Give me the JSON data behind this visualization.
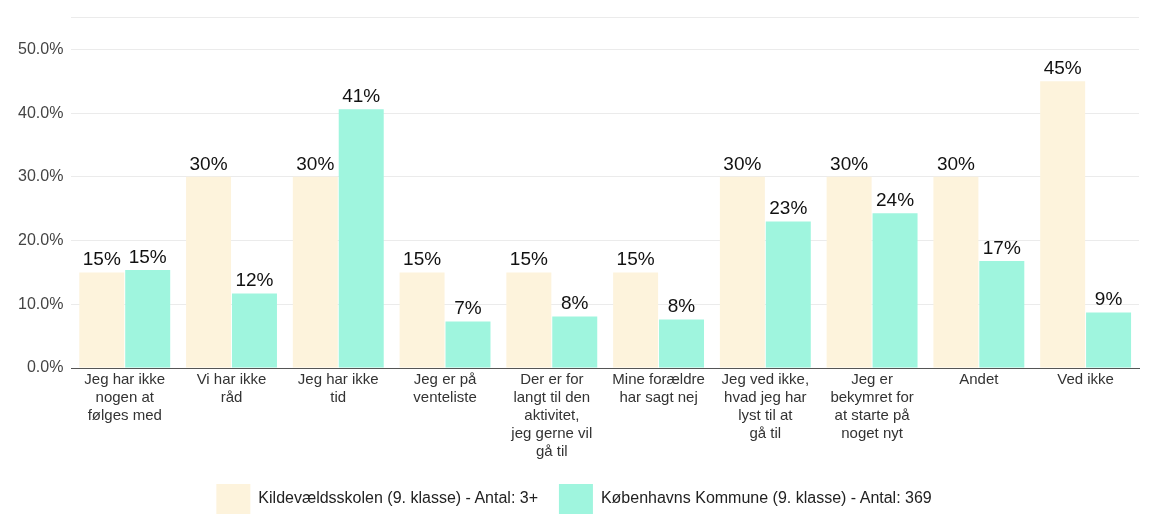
{
  "chart_data": {
    "type": "bar",
    "categories": [
      "Jeg har ikke nogen at følges med",
      "Vi har ikke råd",
      "Jeg har ikke tid",
      "Jeg er på venteliste",
      "Der er for langt til den aktivitet, jeg gerne vil gå til",
      "Mine forældre har sagt nej",
      "Jeg ved ikke, hvad jeg har lyst til at gå til",
      "Jeg er bekymret for at starte på noget nyt",
      "Andet",
      "Ved ikke"
    ],
    "series": [
      {
        "name": "Kildevældsskolen (9. klasse) - Antal: 3+",
        "color": "#fdf3dc",
        "values": [
          15,
          30,
          30,
          15,
          15,
          15,
          30,
          30,
          30,
          45
        ],
        "value_labels": [
          "15%",
          "30%",
          "30%",
          "15%",
          "15%",
          "15%",
          "30%",
          "30%",
          "30%",
          "45%"
        ]
      },
      {
        "name": "Københavns Kommune (9. klasse) - Antal: 369",
        "color": "#9ff5de",
        "values": [
          15.4,
          11.7,
          40.6,
          7.3,
          8.1,
          7.6,
          23,
          24.3,
          16.8,
          8.7
        ],
        "value_labels": [
          "15%",
          "12%",
          "41%",
          "7%",
          "8%",
          "8%",
          "23%",
          "24%",
          "17%",
          "9%"
        ]
      }
    ],
    "ylim": [
      0,
      55
    ],
    "yticks": [
      {
        "value": 0,
        "label": "0.0%"
      },
      {
        "value": 10,
        "label": "10.0%"
      },
      {
        "value": 20,
        "label": "20.0%"
      },
      {
        "value": 30,
        "label": "30.0%"
      },
      {
        "value": 40,
        "label": "40.0%"
      },
      {
        "value": 50,
        "label": "50.0%"
      },
      {
        "value": 55,
        "label": null
      }
    ],
    "grid": "y",
    "legend": "bottom"
  }
}
